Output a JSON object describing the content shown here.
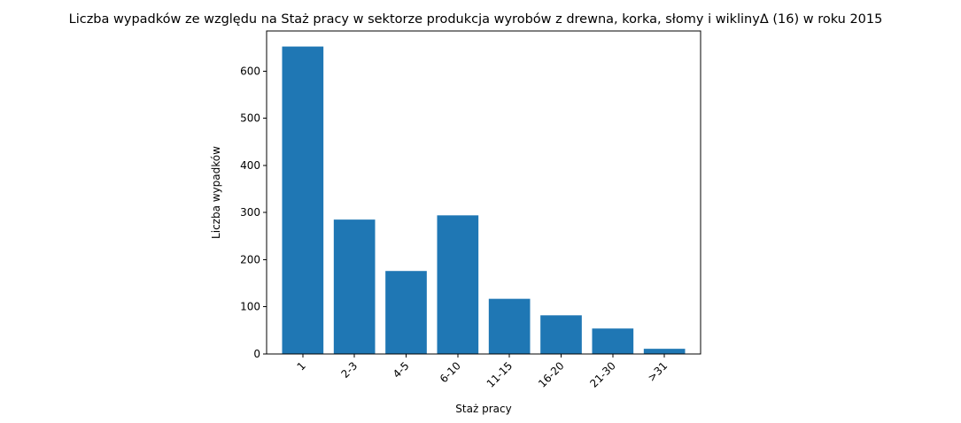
{
  "chart_data": {
    "type": "bar",
    "title": "Liczba wypadków ze względu na Staż pracy w sektorze produkcja wyrobów z drewna, korka, słomy i wiklinyΔ (16)  w roku 2015",
    "xlabel": "Staż pracy",
    "ylabel": "Liczba wypadków",
    "categories": [
      "1",
      "2-3",
      "4-5",
      "6-10",
      "11-15",
      "16-20",
      "21-30",
      ">31"
    ],
    "values": [
      652,
      285,
      176,
      294,
      117,
      82,
      54,
      11
    ],
    "ylim": [
      0,
      685
    ],
    "yticks": [
      0,
      100,
      200,
      300,
      400,
      500,
      600
    ],
    "bar_color": "#1f77b4",
    "grid": false
  }
}
